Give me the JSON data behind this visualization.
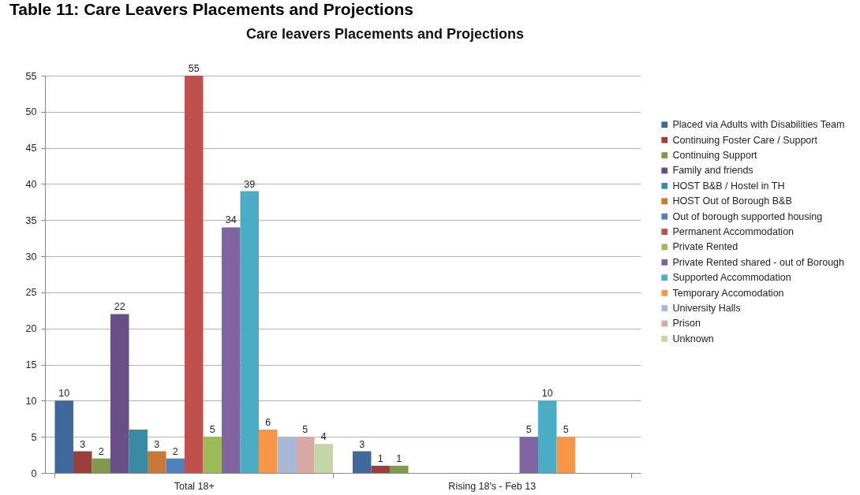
{
  "chart_data": {
    "type": "bar",
    "title": "Care leavers Placements and Projections",
    "annotations": [
      "Table 11: Care Leavers Placements and Projections"
    ],
    "categories": [
      "Total 18+",
      "Rising 18's - Feb 13"
    ],
    "series": [
      {
        "name": "Placed via Adults with Disabilities Team",
        "color": "#3f689c",
        "values": [
          10,
          3
        ],
        "value_labels": [
          "10",
          "3"
        ]
      },
      {
        "name": "Continuing Foster Care / Support",
        "color": "#9e3e3b",
        "values": [
          3,
          1
        ],
        "value_labels": [
          "3",
          "1"
        ]
      },
      {
        "name": "Continuing Support",
        "color": "#7f9a48",
        "values": [
          2,
          1
        ],
        "value_labels": [
          "2",
          "1"
        ]
      },
      {
        "name": "Family and friends",
        "color": "#684f86",
        "values": [
          22,
          null
        ],
        "value_labels": [
          "22",
          null
        ]
      },
      {
        "name": "HOST B&B / Hostel in TH",
        "color": "#398ba3",
        "values": [
          6,
          null
        ],
        "value_labels": [
          null,
          null
        ]
      },
      {
        "name": "HOST Out of Borough B&B",
        "color": "#cb7836",
        "values": [
          3,
          null
        ],
        "value_labels": [
          "3",
          null
        ]
      },
      {
        "name": "Out of borough supported housing",
        "color": "#4f81bd",
        "values": [
          2,
          null
        ],
        "value_labels": [
          "2",
          null
        ]
      },
      {
        "name": "Permanent Accommodation",
        "color": "#c0504d",
        "values": [
          55,
          null
        ],
        "value_labels": [
          "55",
          null
        ]
      },
      {
        "name": "Private Rented",
        "color": "#9bbb59",
        "values": [
          5,
          null
        ],
        "value_labels": [
          "5",
          null
        ]
      },
      {
        "name": "Private Rented shared - out of Borough",
        "color": "#8064a2",
        "values": [
          34,
          5
        ],
        "value_labels": [
          "34",
          "5"
        ]
      },
      {
        "name": "Supported Accommodation",
        "color": "#4bacc6",
        "values": [
          39,
          10
        ],
        "value_labels": [
          "39",
          "10"
        ]
      },
      {
        "name": "Temporary Accomodation",
        "color": "#f79646",
        "values": [
          6,
          5
        ],
        "value_labels": [
          "6",
          "5"
        ]
      },
      {
        "name": "University Halls",
        "color": "#a8b9d8",
        "values": [
          5,
          null
        ],
        "value_labels": [
          null,
          null
        ]
      },
      {
        "name": "Prison",
        "color": "#d9a9a8",
        "values": [
          5,
          null
        ],
        "value_labels": [
          "5",
          null
        ]
      },
      {
        "name": "Unknown",
        "color": "#c4d6a8",
        "values": [
          4,
          null
        ],
        "value_labels": [
          "4",
          null
        ]
      }
    ],
    "ylim": [
      0,
      55
    ],
    "yticks": [
      0,
      5,
      10,
      15,
      20,
      25,
      30,
      35,
      40,
      45,
      50,
      55
    ],
    "grid": "y",
    "legend": "right"
  }
}
